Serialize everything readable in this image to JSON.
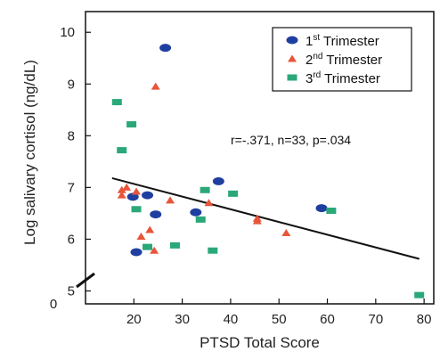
{
  "chart_data": {
    "type": "scatter",
    "xlabel": "PTSD Total Score",
    "ylabel": "Log salivary cortisol (ng/dL)",
    "xlim": [
      10,
      82
    ],
    "ylim": [
      4.75,
      10.4
    ],
    "x_ticks": [
      20,
      30,
      40,
      50,
      60,
      70,
      80
    ],
    "y_ticks": [
      5,
      6,
      7,
      8,
      9,
      10
    ],
    "y_origin_label": "0",
    "axis_break": true,
    "grid": false,
    "legend_position": "top-right",
    "annotation": "r=-.371, n=33, p=.034",
    "series": [
      {
        "name": "1st Trimester",
        "name_base": "1",
        "name_sup": "st",
        "name_rest": " Trimester",
        "marker": "ellipse",
        "color": "#1f3fa0",
        "points": [
          [
            26.5,
            9.7
          ],
          [
            19.8,
            6.82
          ],
          [
            22.8,
            6.85
          ],
          [
            24.5,
            6.48
          ],
          [
            20.5,
            5.75
          ],
          [
            32.8,
            6.52
          ],
          [
            37.5,
            7.12
          ],
          [
            58.8,
            6.6
          ]
        ]
      },
      {
        "name": "2nd Trimester",
        "name_base": "2",
        "name_sup": "nd",
        "name_rest": " Trimester",
        "marker": "triangle",
        "color": "#e8553a",
        "points": [
          [
            24.5,
            8.95
          ],
          [
            17.5,
            6.95
          ],
          [
            17.5,
            6.85
          ],
          [
            18.5,
            7.0
          ],
          [
            20.5,
            6.92
          ],
          [
            21.5,
            6.05
          ],
          [
            23.3,
            6.18
          ],
          [
            24.2,
            5.78
          ],
          [
            27.5,
            6.75
          ],
          [
            35.5,
            6.7
          ],
          [
            45.5,
            6.4
          ],
          [
            45.5,
            6.35
          ],
          [
            51.5,
            6.12
          ]
        ]
      },
      {
        "name": "3rd Trimester",
        "name_base": "3",
        "name_sup": "rd",
        "name_rest": " Trimester",
        "marker": "square",
        "color": "#2aa87a",
        "points": [
          [
            16.5,
            8.65
          ],
          [
            19.5,
            8.22
          ],
          [
            17.5,
            7.72
          ],
          [
            20.5,
            6.58
          ],
          [
            22.8,
            5.85
          ],
          [
            28.5,
            5.88
          ],
          [
            33.8,
            6.38
          ],
          [
            34.7,
            6.95
          ],
          [
            36.3,
            5.78
          ],
          [
            40.5,
            6.88
          ],
          [
            60.8,
            6.55
          ],
          [
            79,
            4.92
          ]
        ]
      }
    ],
    "regression_line": {
      "x": [
        15.5,
        79
      ],
      "y": [
        7.18,
        5.62
      ],
      "color": "#111111"
    }
  }
}
